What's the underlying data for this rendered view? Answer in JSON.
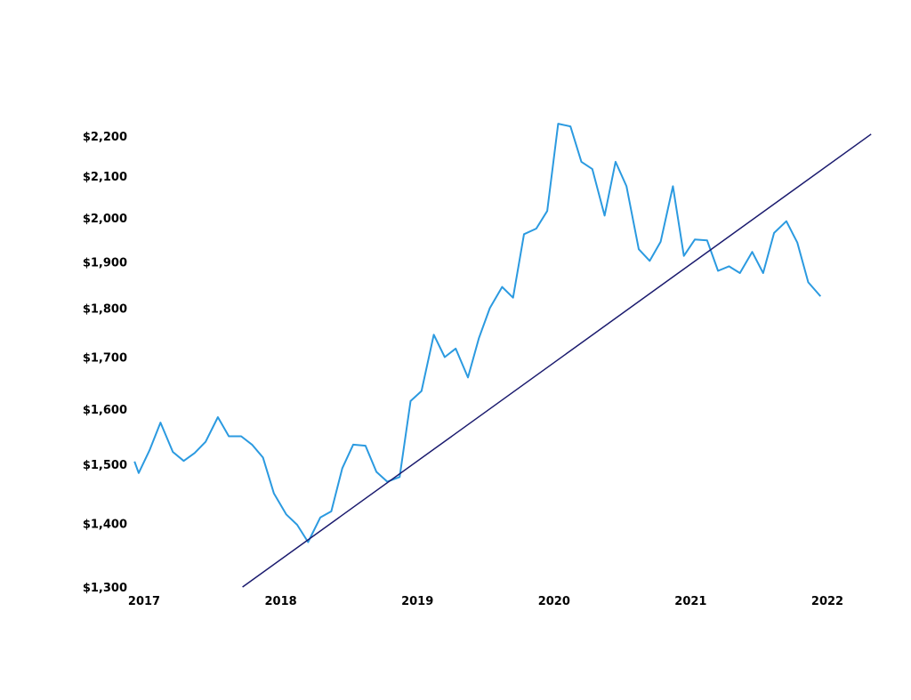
{
  "chart_data": {
    "type": "line",
    "title": "",
    "xlabel": "",
    "ylabel": "",
    "y_scale": "log",
    "grid": false,
    "legend": "none",
    "xlim": [
      2017.0,
      2022.0
    ],
    "ylim": [
      1300,
      2200
    ],
    "x_tick_labels": [
      "2017",
      "2018",
      "2019",
      "2020",
      "2021",
      "2022"
    ],
    "x_tick_values": [
      2017,
      2018,
      2019,
      2020,
      2021,
      2022
    ],
    "y_tick_labels": [
      "$1,300",
      "$1,400",
      "$1,500",
      "$1,600",
      "$1,700",
      "$1,800",
      "$1,900",
      "$2,000",
      "$2,100",
      "$2,200"
    ],
    "y_tick_values": [
      1300,
      1400,
      1500,
      1600,
      1700,
      1800,
      1900,
      2000,
      2100,
      2200
    ],
    "series": [
      {
        "name": "",
        "color": "#2b9ae0",
        "x": [
          2016.93,
          2016.96,
          2017.04,
          2017.12,
          2017.21,
          2017.29,
          2017.37,
          2017.45,
          2017.54,
          2017.62,
          2017.71,
          2017.79,
          2017.87,
          2017.95,
          2018.04,
          2018.12,
          2018.2,
          2018.29,
          2018.37,
          2018.45,
          2018.53,
          2018.62,
          2018.7,
          2018.78,
          2018.87,
          2018.95,
          2019.03,
          2019.12,
          2019.2,
          2019.28,
          2019.37,
          2019.45,
          2019.53,
          2019.62,
          2019.7,
          2019.78,
          2019.87,
          2019.95,
          2020.03,
          2020.12,
          2020.2,
          2020.28,
          2020.37,
          2020.45,
          2020.53,
          2020.62,
          2020.7,
          2020.78,
          2020.87,
          2020.95,
          2021.03,
          2021.12,
          2021.2,
          2021.28,
          2021.36,
          2021.45,
          2021.53,
          2021.61,
          2021.7,
          2021.78,
          2021.86,
          2021.95
        ],
        "y": [
          1505,
          1485,
          1525,
          1575,
          1522,
          1506,
          1520,
          1540,
          1585,
          1550,
          1550,
          1535,
          1512,
          1450,
          1415,
          1398,
          1370,
          1410,
          1420,
          1493,
          1535,
          1533,
          1487,
          1470,
          1478,
          1615,
          1634,
          1745,
          1700,
          1717,
          1660,
          1738,
          1800,
          1845,
          1822,
          1962,
          1975,
          2016,
          2232,
          2225,
          2135,
          2117,
          2005,
          2135,
          2075,
          1928,
          1902,
          1945,
          2075,
          1913,
          1950,
          1948,
          1880,
          1890,
          1875,
          1922,
          1875,
          1965,
          1992,
          1943,
          1855,
          1825
        ]
      },
      {
        "name": "",
        "color": "#1a1a6e",
        "x": [
          2017.72,
          2022.32
        ],
        "y": [
          1300,
          2205
        ]
      }
    ]
  }
}
